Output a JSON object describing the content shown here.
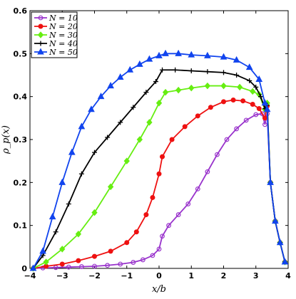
{
  "chart_data": {
    "type": "line",
    "xlabel": "x/b",
    "ylabel": "ρ_p(x)",
    "xlim": [
      -4,
      4
    ],
    "ylim": [
      0,
      0.6
    ],
    "x_ticks": [
      "−4",
      "−3",
      "−2",
      "−1",
      "0",
      "1",
      "2",
      "3",
      "4"
    ],
    "y_ticks": [
      "0",
      "0.1",
      "0.2",
      "0.3",
      "0.4",
      "0.5",
      "0.6"
    ],
    "grid": false,
    "legend_position": "top-left",
    "series": [
      {
        "name": "N = 10",
        "color": "#9933cc",
        "marker": "circle-open",
        "points": [
          [
            -3.9,
            0.0
          ],
          [
            -3.6,
            0.001
          ],
          [
            -3.2,
            0.002
          ],
          [
            -2.8,
            0.003
          ],
          [
            -2.4,
            0.004
          ],
          [
            -2.0,
            0.005
          ],
          [
            -1.6,
            0.007
          ],
          [
            -1.2,
            0.01
          ],
          [
            -0.8,
            0.014
          ],
          [
            -0.5,
            0.02
          ],
          [
            -0.2,
            0.03
          ],
          [
            0.0,
            0.045
          ],
          [
            0.1,
            0.075
          ],
          [
            0.3,
            0.1
          ],
          [
            0.6,
            0.125
          ],
          [
            0.9,
            0.15
          ],
          [
            1.2,
            0.185
          ],
          [
            1.5,
            0.225
          ],
          [
            1.8,
            0.265
          ],
          [
            2.1,
            0.3
          ],
          [
            2.4,
            0.325
          ],
          [
            2.7,
            0.345
          ],
          [
            3.0,
            0.358
          ],
          [
            3.2,
            0.36
          ],
          [
            3.28,
            0.335
          ],
          [
            3.35,
            0.36
          ],
          [
            3.45,
            0.2
          ],
          [
            3.6,
            0.11
          ],
          [
            3.75,
            0.06
          ],
          [
            3.9,
            0.015
          ]
        ]
      },
      {
        "name": "N = 20",
        "color": "#ee1111",
        "marker": "circle-filled",
        "points": [
          [
            -3.9,
            0.0
          ],
          [
            -3.5,
            0.005
          ],
          [
            -3.0,
            0.01
          ],
          [
            -2.5,
            0.018
          ],
          [
            -2.0,
            0.028
          ],
          [
            -1.5,
            0.04
          ],
          [
            -1.0,
            0.06
          ],
          [
            -0.7,
            0.085
          ],
          [
            -0.4,
            0.125
          ],
          [
            -0.2,
            0.165
          ],
          [
            0.0,
            0.22
          ],
          [
            0.1,
            0.26
          ],
          [
            0.4,
            0.3
          ],
          [
            0.8,
            0.33
          ],
          [
            1.2,
            0.355
          ],
          [
            1.6,
            0.375
          ],
          [
            2.0,
            0.388
          ],
          [
            2.3,
            0.392
          ],
          [
            2.6,
            0.39
          ],
          [
            2.9,
            0.382
          ],
          [
            3.1,
            0.372
          ],
          [
            3.28,
            0.35
          ],
          [
            3.35,
            0.378
          ],
          [
            3.45,
            0.2
          ],
          [
            3.6,
            0.11
          ],
          [
            3.75,
            0.06
          ],
          [
            3.9,
            0.015
          ]
        ]
      },
      {
        "name": "N = 30",
        "color": "#66ee11",
        "marker": "diamond",
        "points": [
          [
            -3.9,
            0.0
          ],
          [
            -3.5,
            0.015
          ],
          [
            -3.0,
            0.045
          ],
          [
            -2.5,
            0.08
          ],
          [
            -2.0,
            0.13
          ],
          [
            -1.5,
            0.19
          ],
          [
            -1.0,
            0.25
          ],
          [
            -0.6,
            0.3
          ],
          [
            -0.3,
            0.34
          ],
          [
            0.0,
            0.385
          ],
          [
            0.2,
            0.41
          ],
          [
            0.6,
            0.415
          ],
          [
            1.0,
            0.42
          ],
          [
            1.5,
            0.425
          ],
          [
            2.0,
            0.425
          ],
          [
            2.5,
            0.422
          ],
          [
            2.9,
            0.412
          ],
          [
            3.1,
            0.405
          ],
          [
            3.28,
            0.37
          ],
          [
            3.35,
            0.385
          ],
          [
            3.45,
            0.2
          ],
          [
            3.6,
            0.11
          ],
          [
            3.75,
            0.06
          ],
          [
            3.9,
            0.015
          ]
        ]
      },
      {
        "name": "N = 40",
        "color": "#000000",
        "marker": "plus",
        "points": [
          [
            -3.9,
            0.0
          ],
          [
            -3.6,
            0.03
          ],
          [
            -3.2,
            0.085
          ],
          [
            -2.8,
            0.15
          ],
          [
            -2.4,
            0.22
          ],
          [
            -2.0,
            0.27
          ],
          [
            -1.6,
            0.305
          ],
          [
            -1.2,
            0.34
          ],
          [
            -0.8,
            0.375
          ],
          [
            -0.4,
            0.41
          ],
          [
            -0.1,
            0.435
          ],
          [
            0.1,
            0.462
          ],
          [
            0.5,
            0.462
          ],
          [
            1.0,
            0.46
          ],
          [
            1.5,
            0.458
          ],
          [
            2.0,
            0.456
          ],
          [
            2.4,
            0.45
          ],
          [
            2.8,
            0.437
          ],
          [
            3.0,
            0.422
          ],
          [
            3.15,
            0.4
          ],
          [
            3.28,
            0.372
          ],
          [
            3.35,
            0.38
          ],
          [
            3.45,
            0.2
          ],
          [
            3.6,
            0.11
          ],
          [
            3.75,
            0.06
          ],
          [
            3.9,
            0.015
          ]
        ]
      },
      {
        "name": "N = 50",
        "color": "#1144ee",
        "marker": "triangle",
        "points": [
          [
            -3.9,
            0.0
          ],
          [
            -3.6,
            0.04
          ],
          [
            -3.3,
            0.12
          ],
          [
            -3.0,
            0.2
          ],
          [
            -2.7,
            0.27
          ],
          [
            -2.4,
            0.33
          ],
          [
            -2.1,
            0.37
          ],
          [
            -1.8,
            0.4
          ],
          [
            -1.5,
            0.425
          ],
          [
            -1.2,
            0.445
          ],
          [
            -0.9,
            0.462
          ],
          [
            -0.6,
            0.475
          ],
          [
            -0.3,
            0.487
          ],
          [
            0.0,
            0.495
          ],
          [
            0.2,
            0.5
          ],
          [
            0.6,
            0.5
          ],
          [
            1.0,
            0.497
          ],
          [
            1.5,
            0.495
          ],
          [
            2.0,
            0.492
          ],
          [
            2.4,
            0.485
          ],
          [
            2.8,
            0.468
          ],
          [
            3.1,
            0.44
          ],
          [
            3.28,
            0.385
          ],
          [
            3.35,
            0.37
          ],
          [
            3.45,
            0.2
          ],
          [
            3.6,
            0.11
          ],
          [
            3.75,
            0.06
          ],
          [
            3.9,
            0.015
          ]
        ]
      }
    ]
  }
}
